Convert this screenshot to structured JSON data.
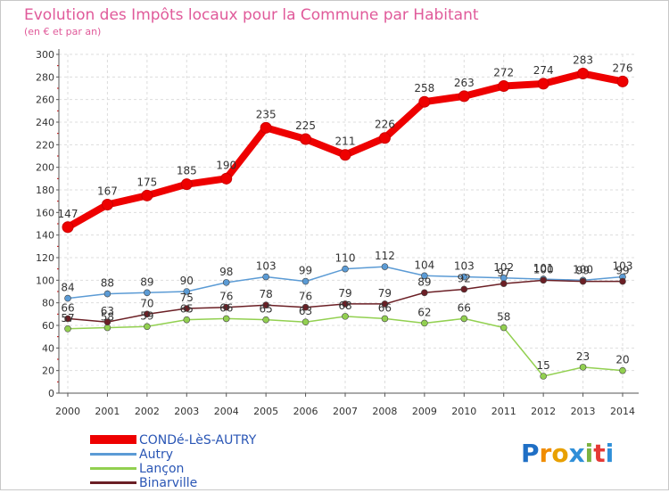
{
  "chart_data": {
    "type": "line",
    "title": "Evolution des Impôts locaux pour la Commune par Habitant",
    "subtitle": "(en € et par an)",
    "xlabel": "",
    "ylabel": "",
    "ylim": [
      0,
      300
    ],
    "yticks": [
      0,
      20,
      40,
      60,
      80,
      100,
      120,
      140,
      160,
      180,
      200,
      220,
      240,
      260,
      280,
      300
    ],
    "x": [
      "2000",
      "2001",
      "2002",
      "2003",
      "2004",
      "2005",
      "2006",
      "2007",
      "2008",
      "2009",
      "2010",
      "2011",
      "2012",
      "2013",
      "2014"
    ],
    "grid": true,
    "legend_position": "bottom-left",
    "series": [
      {
        "name": "CONDé-LèS-AUTRY",
        "color": "#ee0000",
        "style": "thick",
        "values": [
          147,
          167,
          175,
          185,
          190,
          235,
          225,
          211,
          226,
          258,
          263,
          272,
          274,
          283,
          276
        ]
      },
      {
        "name": "Autry",
        "color": "#5b9bd5",
        "style": "thin",
        "values": [
          84,
          88,
          89,
          90,
          98,
          103,
          99,
          110,
          112,
          104,
          103,
          102,
          101,
          100,
          103
        ]
      },
      {
        "name": "Lançon",
        "color": "#92d050",
        "style": "thin",
        "values": [
          57,
          58,
          59,
          65,
          66,
          65,
          63,
          68,
          66,
          62,
          66,
          58,
          15,
          23,
          20
        ]
      },
      {
        "name": "Binarville",
        "color": "#6b1f25",
        "style": "thin",
        "values": [
          66,
          63,
          70,
          75,
          76,
          78,
          76,
          79,
          79,
          89,
          92,
          97,
          100,
          99,
          99
        ]
      }
    ]
  },
  "brand": {
    "letters": [
      "P",
      "r",
      "o",
      "x",
      "i",
      "t",
      "i"
    ],
    "colors": [
      "#1f6fc5",
      "#f08c00",
      "#e8a000",
      "#2f8fd8",
      "#7cb342",
      "#e53935",
      "#2f8fd8"
    ]
  }
}
